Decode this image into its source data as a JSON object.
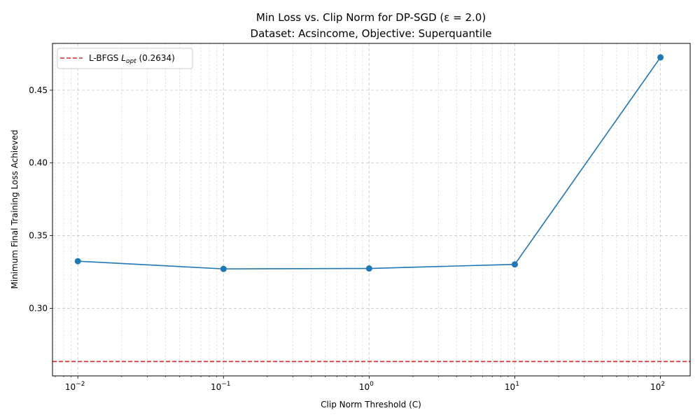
{
  "chart_data": {
    "type": "line",
    "title_line1": "Min Loss vs. Clip Norm for DP-SGD (ε = 2.0)",
    "title_line2": "Dataset: Acsincome, Objective: Superquantile",
    "xlabel": "Clip Norm Threshold (C)",
    "ylabel": "Minimum Final Training Loss Achieved",
    "x_scale": "log",
    "xlim": [
      0.0067,
      160
    ],
    "ylim": [
      0.2535,
      0.4822
    ],
    "x_ticks": [
      {
        "value": 0.01,
        "base": "10",
        "exp": "−2"
      },
      {
        "value": 0.1,
        "base": "10",
        "exp": "−1"
      },
      {
        "value": 1,
        "base": "10",
        "exp": "0"
      },
      {
        "value": 10,
        "base": "10",
        "exp": "1"
      },
      {
        "value": 100,
        "base": "10",
        "exp": "2"
      }
    ],
    "y_ticks": [
      {
        "value": 0.3,
        "label": "0.30"
      },
      {
        "value": 0.35,
        "label": "0.35"
      },
      {
        "value": 0.4,
        "label": "0.40"
      },
      {
        "value": 0.45,
        "label": "0.45"
      }
    ],
    "grid": true,
    "legend_position": "upper-left",
    "series": [
      {
        "x": [
          0.01,
          0.1,
          1,
          10,
          100
        ],
        "y": [
          0.3324,
          0.3271,
          0.3274,
          0.3302,
          0.4726
        ],
        "color": "#1f77b4",
        "marker": "circle"
      }
    ],
    "reference_line": {
      "y": 0.2634,
      "color": "#d62728",
      "style": "dashed",
      "legend_prefix": "L-BFGS ",
      "legend_symbol": "L",
      "legend_subscript": "opt",
      "legend_value": " (0.2634)"
    }
  }
}
